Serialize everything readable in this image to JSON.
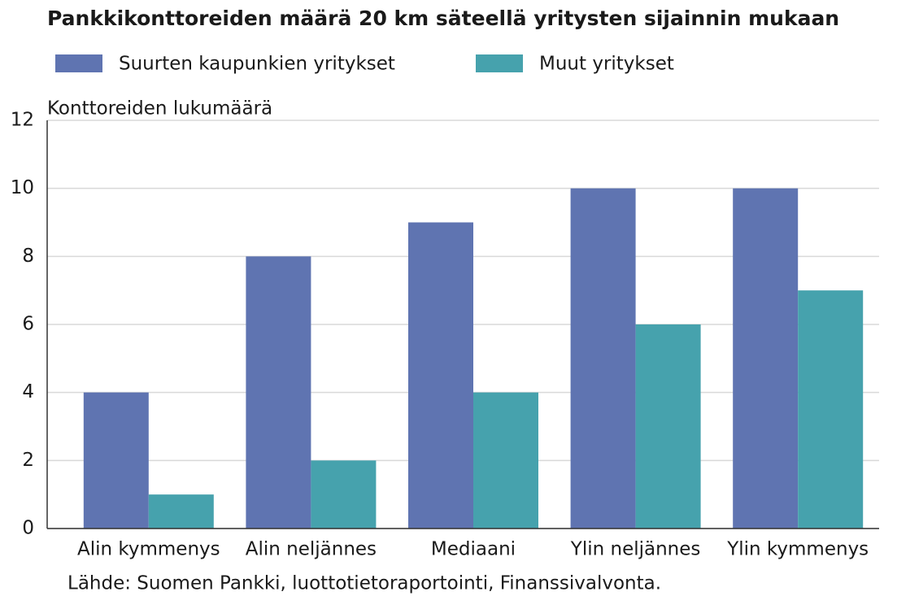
{
  "chart_data": {
    "type": "bar",
    "title": "Pankkikonttoreiden määrä 20 km säteellä yritysten sijainnin mukaan",
    "y_label": "Konttoreiden lukumäärä",
    "source": "Lähde: Suomen Pankki, luottotietoraportointi, Finanssivalvonta.",
    "categories": [
      "Alin kymmenys",
      "Alin neljännes",
      "Mediaani",
      "Ylin neljännes",
      "Ylin kymmenys"
    ],
    "series": [
      {
        "name": "Suurten kaupunkien yritykset",
        "color": "#5f74b1",
        "values": [
          4,
          8,
          9,
          10,
          10
        ]
      },
      {
        "name": "Muut yritykset",
        "color": "#46a2ad",
        "values": [
          1,
          2,
          4,
          6,
          7
        ]
      }
    ],
    "ylim": [
      0,
      12
    ],
    "yticks": [
      0,
      2,
      4,
      6,
      8,
      10,
      12
    ],
    "grid": true
  }
}
